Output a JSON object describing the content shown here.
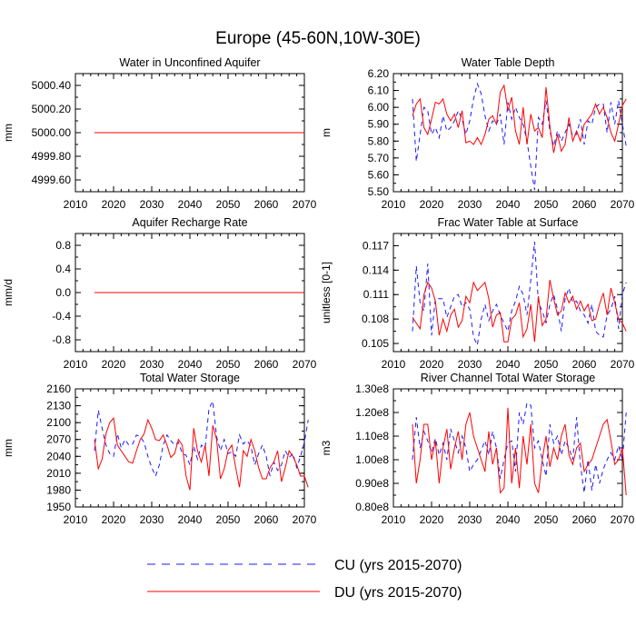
{
  "title": "Europe (45-60N,10W-30E)",
  "legend": [
    {
      "label": "CU (yrs 2015-2070)",
      "color": "#1a1aff",
      "dash": true
    },
    {
      "label": "DU (yrs 2015-2070)",
      "color": "#ff0000",
      "dash": false
    }
  ],
  "chart_data": [
    {
      "type": "line",
      "title": "Water in Unconfined Aquifer",
      "ylabel": "mm",
      "xlim": [
        2010,
        2070
      ],
      "ylim": [
        4999.5,
        5000.5
      ],
      "xticks": [
        2010,
        2020,
        2030,
        2040,
        2050,
        2060,
        2070
      ],
      "yticks": [
        "5000.40",
        "5000.20",
        "5000.00",
        "4999.80",
        "4999.60"
      ],
      "ytick_values": [
        5000.4,
        5000.2,
        5000.0,
        4999.8,
        4999.6
      ],
      "x_start": 2015,
      "series": [
        {
          "name": "CU (yrs 2015-2070)",
          "constant": 5000.0
        },
        {
          "name": "DU (yrs 2015-2070)",
          "constant": 5000.0
        }
      ]
    },
    {
      "type": "line",
      "title": "Water Table Depth",
      "ylabel": "m",
      "xlim": [
        2010,
        2070
      ],
      "ylim": [
        5.5,
        6.2
      ],
      "xticks": [
        2010,
        2020,
        2030,
        2040,
        2050,
        2060,
        2070
      ],
      "yticks": [
        "6.20",
        "6.10",
        "6.00",
        "5.90",
        "5.80",
        "5.70",
        "5.60",
        "5.50"
      ],
      "ytick_values": [
        6.2,
        6.1,
        6.0,
        5.9,
        5.8,
        5.7,
        5.6,
        5.5
      ],
      "x_start": 2015,
      "series": [
        {
          "name": "CU (yrs 2015-2070)",
          "values": [
            6.05,
            5.68,
            5.84,
            6.0,
            5.98,
            5.84,
            5.88,
            5.82,
            5.95,
            5.86,
            5.88,
            5.92,
            5.98,
            5.93,
            5.84,
            5.92,
            6.05,
            6.14,
            6.08,
            5.95,
            5.86,
            5.92,
            5.9,
            5.96,
            5.78,
            6.03,
            5.93,
            6.0,
            5.94,
            5.9,
            5.8,
            5.65,
            5.51,
            5.94,
            5.9,
            6.04,
            5.86,
            5.77,
            5.86,
            5.8,
            5.85,
            5.9,
            5.83,
            5.84,
            5.93,
            5.78,
            5.92,
            5.9,
            6.0,
            6.02,
            6.02,
            5.85,
            6.03,
            5.9,
            6.04,
            5.9,
            5.77
          ]
        },
        {
          "name": "DU (yrs 2015-2070)",
          "values": [
            5.95,
            6.02,
            6.05,
            5.88,
            5.84,
            5.93,
            6.03,
            6.02,
            6.05,
            5.96,
            5.92,
            5.96,
            5.88,
            5.98,
            5.79,
            5.8,
            5.78,
            5.82,
            5.78,
            5.84,
            5.93,
            5.95,
            5.9,
            6.09,
            6.13,
            5.98,
            6.06,
            5.86,
            5.78,
            6.0,
            5.78,
            5.96,
            5.86,
            5.88,
            5.82,
            6.12,
            5.89,
            5.73,
            5.84,
            5.74,
            5.78,
            5.94,
            5.8,
            5.86,
            5.8,
            5.9,
            5.93,
            5.96,
            6.02,
            5.96,
            6.0,
            5.94,
            5.85,
            5.8,
            5.9,
            6.01,
            6.05
          ]
        }
      ]
    },
    {
      "type": "line",
      "title": "Aquifer Recharge Rate",
      "ylabel": "mm/d",
      "xlim": [
        2010,
        2070
      ],
      "ylim": [
        -1.0,
        1.0
      ],
      "xticks": [
        2010,
        2020,
        2030,
        2040,
        2050,
        2060,
        2070
      ],
      "yticks": [
        "0.8",
        "0.4",
        "0.0",
        "-0.4",
        "-0.8"
      ],
      "ytick_values": [
        0.8,
        0.4,
        0.0,
        -0.4,
        -0.8
      ],
      "x_start": 2015,
      "series": [
        {
          "name": "CU (yrs 2015-2070)",
          "constant": 0.0
        },
        {
          "name": "DU (yrs 2015-2070)",
          "constant": 0.0
        }
      ]
    },
    {
      "type": "line",
      "title": "Frac Water Table at Surface",
      "ylabel": "unitless [0-1]",
      "xlim": [
        2010,
        2070
      ],
      "ylim": [
        0.104,
        0.1185
      ],
      "xticks": [
        2010,
        2020,
        2030,
        2040,
        2050,
        2060,
        2070
      ],
      "yticks": [
        "0.117",
        "0.114",
        "0.111",
        "0.108",
        "0.105"
      ],
      "ytick_values": [
        0.117,
        0.114,
        0.111,
        0.108,
        0.105
      ],
      "x_start": 2015,
      "series": [
        {
          "name": "CU (yrs 2015-2070)",
          "values": [
            0.1065,
            0.1145,
            0.11,
            0.109,
            0.1148,
            0.106,
            0.1105,
            0.1105,
            0.1105,
            0.1082,
            0.1095,
            0.1108,
            0.111,
            0.1095,
            0.11,
            0.1092,
            0.1058,
            0.1048,
            0.108,
            0.1098,
            0.1078,
            0.109,
            0.1098,
            0.1085,
            0.1075,
            0.1065,
            0.109,
            0.1102,
            0.112,
            0.111,
            0.1085,
            0.1128,
            0.1175,
            0.11,
            0.109,
            0.1075,
            0.1098,
            0.111,
            0.1092,
            0.1065,
            0.1105,
            0.1118,
            0.11,
            0.1102,
            0.109,
            0.1085,
            0.1075,
            0.1098,
            0.1065,
            0.106,
            0.1058,
            0.1085,
            0.1092,
            0.1108,
            0.1068,
            0.111,
            0.1125
          ]
        },
        {
          "name": "DU (yrs 2015-2070)",
          "values": [
            0.1082,
            0.1075,
            0.1068,
            0.111,
            0.1125,
            0.1118,
            0.1102,
            0.106,
            0.108,
            0.1065,
            0.1085,
            0.1092,
            0.107,
            0.1078,
            0.1108,
            0.11,
            0.1125,
            0.1115,
            0.112,
            0.1125,
            0.1105,
            0.107,
            0.1085,
            0.1088,
            0.1052,
            0.1052,
            0.108,
            0.1085,
            0.11,
            0.1058,
            0.1068,
            0.1098,
            0.1052,
            0.1108,
            0.1072,
            0.108,
            0.1128,
            0.1105,
            0.1085,
            0.109,
            0.1112,
            0.11,
            0.1108,
            0.1092,
            0.1102,
            0.109,
            0.1098,
            0.1078,
            0.108,
            0.1098,
            0.1112,
            0.1085,
            0.1118,
            0.11,
            0.108,
            0.1075,
            0.1065
          ]
        }
      ]
    },
    {
      "type": "line",
      "title": "Total Water Storage",
      "ylabel": "mm",
      "xlim": [
        2010,
        2070
      ],
      "ylim": [
        1950,
        2160
      ],
      "xticks": [
        2010,
        2020,
        2030,
        2040,
        2050,
        2060,
        2070
      ],
      "yticks": [
        "2160",
        "2130",
        "2100",
        "2070",
        "2040",
        "2010",
        "1980",
        "1950"
      ],
      "ytick_values": [
        2160,
        2130,
        2100,
        2070,
        2040,
        2010,
        1980,
        1950
      ],
      "x_start": 2015,
      "series": [
        {
          "name": "CU (yrs 2015-2070)",
          "values": [
            2050,
            2122,
            2090,
            2060,
            2045,
            2040,
            2080,
            2055,
            2070,
            2060,
            2062,
            2078,
            2075,
            2065,
            2040,
            2020,
            2005,
            2025,
            2060,
            2078,
            2068,
            2060,
            2065,
            2045,
            2042,
            2025,
            2058,
            2035,
            2060,
            2055,
            2125,
            2138,
            2075,
            2050,
            2070,
            2045,
            2048,
            2040,
            2078,
            2062,
            2068,
            2058,
            2025,
            2045,
            2060,
            2040,
            2005,
            2030,
            2015,
            2025,
            2050,
            2038,
            2045,
            2020,
            2040,
            2065,
            2105
          ]
        },
        {
          "name": "DU (yrs 2015-2070)",
          "values": [
            2070,
            2018,
            2035,
            2080,
            2100,
            2108,
            2060,
            2050,
            2040,
            2030,
            2028,
            2050,
            2070,
            2080,
            2105,
            2090,
            2070,
            2068,
            2078,
            2060,
            2038,
            2045,
            2070,
            2060,
            2005,
            1980,
            2090,
            2050,
            2030,
            2060,
            2005,
            2095,
            2070,
            2000,
            2018,
            2050,
            2060,
            2020,
            1985,
            2050,
            2040,
            2070,
            2050,
            2020,
            2000,
            2000,
            2020,
            2030,
            2050,
            1995,
            2020,
            2050,
            2040,
            2025,
            2005,
            2005,
            1985
          ]
        }
      ]
    },
    {
      "type": "line",
      "title": "River Channel Total Water Storage",
      "ylabel": "m3",
      "xlim": [
        2010,
        2070
      ],
      "ylim": [
        80000000.0,
        130000000.0
      ],
      "xticks": [
        2010,
        2020,
        2030,
        2040,
        2050,
        2060,
        2070
      ],
      "yticks": [
        "1.30e8",
        "1.20e8",
        "1.10e8",
        "1.00e8",
        "0.90e8",
        "0.80e8"
      ],
      "ytick_values": [
        130000000.0,
        120000000.0,
        110000000.0,
        100000000.0,
        90000000.0,
        80000000.0
      ],
      "x_start": 2015,
      "series": [
        {
          "name": "CU (yrs 2015-2070)",
          "values": [
            100000000.0,
            118000000.0,
            105000000.0,
            112000000.0,
            108000000.0,
            103000000.0,
            109000000.0,
            102000000.0,
            107000000.0,
            100000000.0,
            113000000.0,
            108000000.0,
            103000000.0,
            110000000.0,
            105000000.0,
            95000000.0,
            98000000.0,
            100000000.0,
            104000000.0,
            108000000.0,
            102000000.0,
            112000000.0,
            105000000.0,
            92000000.0,
            100000000.0,
            107000000.0,
            108000000.0,
            95000000.0,
            120000000.0,
            115000000.0,
            124000000.0,
            123000000.0,
            105000000.0,
            108000000.0,
            100000000.0,
            93000000.0,
            115000000.0,
            107000000.0,
            110000000.0,
            102000000.0,
            108000000.0,
            105000000.0,
            100000000.0,
            118000000.0,
            98000000.0,
            86000000.0,
            100000000.0,
            87000000.0,
            98000000.0,
            90000000.0,
            96000000.0,
            100000000.0,
            103000000.0,
            100000000.0,
            106000000.0,
            100000000.0,
            120000000.0
          ]
        },
        {
          "name": "DU (yrs 2015-2070)",
          "values": [
            115000000.0,
            90000000.0,
            100000000.0,
            115000000.0,
            115000000.0,
            100000000.0,
            108000000.0,
            90000000.0,
            105000000.0,
            113000000.0,
            96000000.0,
            105000000.0,
            112000000.0,
            100000000.0,
            115000000.0,
            120000000.0,
            110000000.0,
            105000000.0,
            100000000.0,
            95000000.0,
            112000000.0,
            98000000.0,
            105000000.0,
            86000000.0,
            88000000.0,
            122000000.0,
            90000000.0,
            105000000.0,
            88000000.0,
            110000000.0,
            98000000.0,
            115000000.0,
            90000000.0,
            86000000.0,
            100000000.0,
            110000000.0,
            97000000.0,
            105000000.0,
            100000000.0,
            110000000.0,
            115000000.0,
            102000000.0,
            98000000.0,
            105000000.0,
            107000000.0,
            95000000.0,
            98000000.0,
            100000000.0,
            105000000.0,
            110000000.0,
            115000000.0,
            117000000.0,
            108000000.0,
            98000000.0,
            100000000.0,
            105000000.0,
            85000000.0
          ]
        }
      ]
    }
  ]
}
